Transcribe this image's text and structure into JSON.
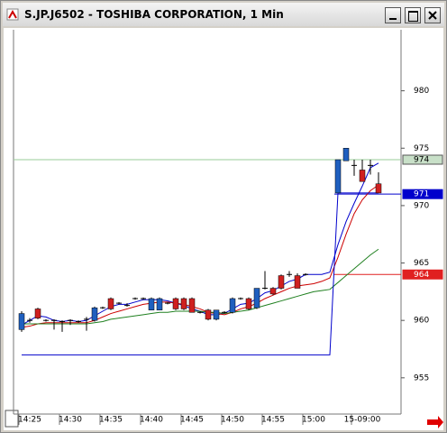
{
  "window": {
    "title": "S.JP.J6502 - TOSHIBA CORPORATION, 1 Min"
  },
  "chart_data": {
    "type": "candlestick",
    "categories": [
      null,
      "14:25",
      null,
      null,
      null,
      null,
      "14:30",
      null,
      null,
      null,
      null,
      "14:35",
      null,
      null,
      null,
      null,
      "14:40",
      null,
      null,
      null,
      null,
      "14:45",
      null,
      null,
      null,
      null,
      "14:50",
      null,
      null,
      null,
      null,
      "14:55",
      null,
      null,
      null,
      null,
      "15:00",
      null,
      null,
      null,
      null,
      null,
      "15-09:00",
      null,
      null
    ],
    "open": [
      959.2,
      960.0,
      961.0,
      960.0,
      960.0,
      959.9,
      960.0,
      959.9,
      960.1,
      960.0,
      961.1,
      961.9,
      961.5,
      961.3,
      961.9,
      961.9,
      960.9,
      960.9,
      961.5,
      961.9,
      961.9,
      961.9,
      960.7,
      960.9,
      960.1,
      960.7,
      960.7,
      961.9,
      961.9,
      961.1,
      962.8,
      962.8,
      963.9,
      964.0,
      963.9,
      964.0,
      null,
      null,
      null,
      971.1,
      973.9,
      973.5,
      973.1,
      973.5,
      971.9
    ],
    "high": [
      960.8,
      960.2,
      961.1,
      960.1,
      960.1,
      960.0,
      960.1,
      960.0,
      960.3,
      961.2,
      961.2,
      962.0,
      961.6,
      961.5,
      962.0,
      962.0,
      962.0,
      962.0,
      961.6,
      962.0,
      962.0,
      962.0,
      960.8,
      961.0,
      960.9,
      960.8,
      962.0,
      962.0,
      962.0,
      962.8,
      964.3,
      962.9,
      964.0,
      964.3,
      964.1,
      964.1,
      null,
      null,
      null,
      974.0,
      975.0,
      974.0,
      974.0,
      974.0,
      972.9
    ],
    "low": [
      959.0,
      959.8,
      960.1,
      959.9,
      959.2,
      959.0,
      959.6,
      959.8,
      959.1,
      959.9,
      961.0,
      960.9,
      961.4,
      961.2,
      961.8,
      961.8,
      960.9,
      960.9,
      961.4,
      960.9,
      960.9,
      960.7,
      960.6,
      960.0,
      960.0,
      960.6,
      960.6,
      961.8,
      960.9,
      961.0,
      962.7,
      962.2,
      962.7,
      963.8,
      962.8,
      963.9,
      null,
      null,
      null,
      971.1,
      973.9,
      972.6,
      972.1,
      972.7,
      971.1
    ],
    "close": [
      960.6,
      960.0,
      960.2,
      960.0,
      960.0,
      959.9,
      960.0,
      959.9,
      960.1,
      961.1,
      961.1,
      961.0,
      961.5,
      961.3,
      961.9,
      961.9,
      961.9,
      961.9,
      961.5,
      961.0,
      961.0,
      960.7,
      960.7,
      960.1,
      960.9,
      960.7,
      961.9,
      961.9,
      961.0,
      962.8,
      962.8,
      962.3,
      962.8,
      964.0,
      962.8,
      964.0,
      null,
      null,
      null,
      974.0,
      975.0,
      973.5,
      972.1,
      973.5,
      971.1
    ],
    "up_color": "#1f5fbf",
    "down_color": "#d02020",
    "flat_color": "#000000",
    "overlays": [
      {
        "color": "#0000cc",
        "values": [
          959.6,
          960.0,
          960.4,
          960.3,
          960.0,
          959.9,
          960.0,
          959.9,
          960.0,
          960.4,
          960.8,
          961.2,
          961.4,
          961.4,
          961.6,
          961.8,
          961.8,
          961.8,
          961.7,
          961.5,
          961.3,
          961.0,
          960.8,
          960.5,
          960.5,
          960.6,
          961.0,
          961.4,
          961.5,
          961.9,
          962.4,
          962.6,
          963.0,
          963.4,
          963.6,
          964.0,
          964.0,
          964.0,
          964.2,
          966.6,
          968.6,
          970.2,
          971.7,
          973.3,
          973.7
        ]
      },
      {
        "color": "#cc0000",
        "values": [
          959.4,
          959.5,
          959.7,
          959.8,
          959.8,
          959.8,
          959.8,
          959.8,
          959.8,
          960.0,
          960.3,
          960.6,
          960.8,
          961.0,
          961.2,
          961.4,
          961.5,
          961.6,
          961.6,
          961.5,
          961.4,
          961.2,
          961.0,
          960.7,
          960.6,
          960.5,
          960.7,
          961.0,
          961.2,
          961.5,
          961.9,
          962.2,
          962.5,
          962.8,
          963.0,
          963.1,
          963.2,
          963.4,
          963.7,
          965.5,
          967.5,
          969.3,
          970.5,
          971.3,
          971.8
        ]
      },
      {
        "color": "#208020",
        "values": [
          959.7,
          959.7,
          959.7,
          959.7,
          959.7,
          959.7,
          959.7,
          959.7,
          959.7,
          959.8,
          959.9,
          960.1,
          960.2,
          960.3,
          960.4,
          960.5,
          960.6,
          960.7,
          960.7,
          960.8,
          960.8,
          960.8,
          960.8,
          960.7,
          960.7,
          960.6,
          960.7,
          960.8,
          960.9,
          961.1,
          961.3,
          961.5,
          961.7,
          961.9,
          962.1,
          962.3,
          962.5,
          962.6,
          962.7,
          963.3,
          963.9,
          964.5,
          965.1,
          965.7,
          966.2
        ]
      },
      {
        "color": "#0000cc",
        "values": [
          957.0,
          957.0,
          957.0,
          957.0,
          957.0,
          957.0,
          957.0,
          957.0,
          957.0,
          957.0,
          957.0,
          957.0,
          957.0,
          957.0,
          957.0,
          957.0,
          957.0,
          957.0,
          957.0,
          957.0,
          957.0,
          957.0,
          957.0,
          957.0,
          957.0,
          957.0,
          957.0,
          957.0,
          957.0,
          957.0,
          957.0,
          957.0,
          957.0,
          957.0,
          957.0,
          957.0,
          957.0,
          957.0,
          957.0,
          971.1,
          971.1,
          971.1,
          971.1,
          971.1,
          971.1
        ]
      }
    ],
    "price_lines": [
      {
        "value": 974,
        "color": "#9acd9a",
        "box": "#c8e0c8"
      },
      {
        "value": 971,
        "color": "#0000cc",
        "box": "#0000cc"
      },
      {
        "value": 964,
        "color": "#e02020",
        "box": "#e02020"
      }
    ],
    "ylim": [
      952,
      985
    ],
    "yticks": [
      955,
      960,
      965,
      970,
      975,
      980
    ]
  }
}
